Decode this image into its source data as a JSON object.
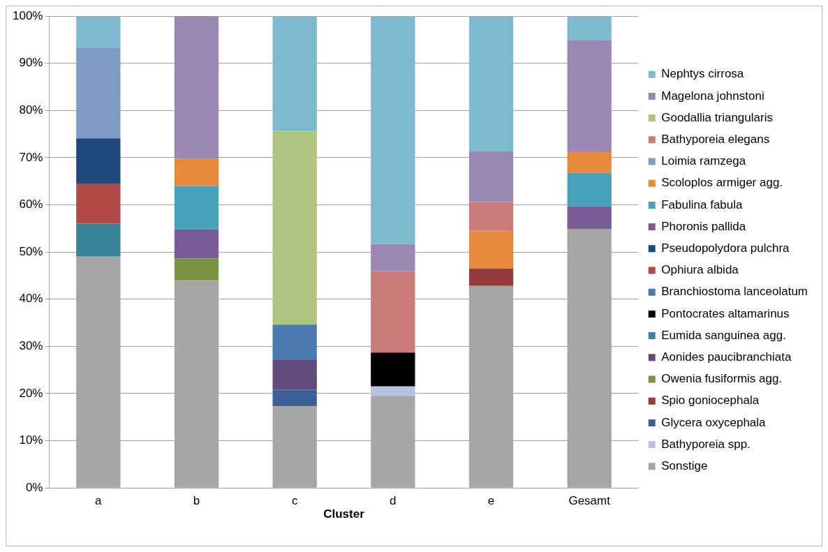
{
  "chart_data": {
    "type": "bar",
    "stacked": true,
    "xlabel": "Cluster",
    "categories": [
      "a",
      "b",
      "c",
      "d",
      "e",
      "Gesamt"
    ],
    "ylim": [
      0,
      100
    ],
    "yticks": [
      {
        "value": 0,
        "label": "0%"
      },
      {
        "value": 10,
        "label": "10%"
      },
      {
        "value": 20,
        "label": "20%"
      },
      {
        "value": 30,
        "label": "30%"
      },
      {
        "value": 40,
        "label": "40%"
      },
      {
        "value": 50,
        "label": "50%"
      },
      {
        "value": 60,
        "label": "60%"
      },
      {
        "value": 70,
        "label": "70%"
      },
      {
        "value": 80,
        "label": "80%"
      },
      {
        "value": 90,
        "label": "90%"
      },
      {
        "value": 100,
        "label": "100%"
      }
    ],
    "grid": "y",
    "legend": "right",
    "series": [
      {
        "name": "Sonstige",
        "color": "#a6a6a6",
        "values": [
          49.0,
          44.1,
          17.3,
          19.5,
          42.8,
          54.9
        ]
      },
      {
        "name": "Bathyporeia spp.",
        "color": "#b5c3e0",
        "values": [
          null,
          null,
          null,
          2.0,
          null,
          null
        ]
      },
      {
        "name": "Glycera oxycephala",
        "color": "#3c6196",
        "values": [
          null,
          null,
          3.5,
          null,
          null,
          null
        ]
      },
      {
        "name": "Spio goniocephala",
        "color": "#953a3a",
        "values": [
          null,
          null,
          null,
          null,
          3.7,
          null
        ]
      },
      {
        "name": "Owenia fusiformis agg.",
        "color": "#7a9444",
        "values": [
          null,
          4.5,
          null,
          null,
          null,
          null
        ]
      },
      {
        "name": "Aonides paucibranchiata",
        "color": "#614b7c",
        "values": [
          null,
          null,
          6.3,
          null,
          null,
          null
        ]
      },
      {
        "name": "Eumida sanguinea agg.",
        "color": "#398496",
        "values": [
          7.0,
          null,
          null,
          null,
          null,
          null
        ]
      },
      {
        "name": "Pontocrates altamarinus",
        "color": "#000000",
        "values": [
          null,
          null,
          null,
          7.2,
          null,
          null
        ]
      },
      {
        "name": "Branchiostoma lanceolatum",
        "color": "#4a78b0",
        "values": [
          null,
          null,
          7.5,
          null,
          null,
          null
        ]
      },
      {
        "name": "Ophiura albida",
        "color": "#b24b48",
        "values": [
          8.4,
          null,
          null,
          null,
          null,
          null
        ]
      },
      {
        "name": "Pseudopolydora pulchra",
        "color": "#1f497d",
        "values": [
          9.7,
          null,
          null,
          null,
          null,
          null
        ]
      },
      {
        "name": "Phoronis pallida",
        "color": "#785c96",
        "values": [
          null,
          6.2,
          null,
          null,
          null,
          4.8
        ]
      },
      {
        "name": "Fabulina fabula",
        "color": "#47a1ba",
        "values": [
          null,
          9.2,
          null,
          null,
          null,
          7.1
        ]
      },
      {
        "name": "Scoloplos armiger agg.",
        "color": "#e88a3e",
        "values": [
          null,
          5.8,
          null,
          null,
          8.0,
          4.5
        ]
      },
      {
        "name": "Loimia ramzega",
        "color": "#7f9ac4",
        "values": [
          19.1,
          null,
          null,
          null,
          null,
          null
        ]
      },
      {
        "name": "Bathyporeia elegans",
        "color": "#c97b7a",
        "values": [
          null,
          null,
          null,
          17.2,
          6.1,
          null
        ]
      },
      {
        "name": "Goodallia triangularis",
        "color": "#adc581",
        "values": [
          null,
          null,
          41.1,
          null,
          null,
          null
        ]
      },
      {
        "name": "Magelona johnstoni",
        "color": "#9b88b2",
        "values": [
          null,
          30.2,
          null,
          5.8,
          10.7,
          23.6
        ]
      },
      {
        "name": "Nephtys cirrosa",
        "color": "#7db9cf",
        "values": [
          6.8,
          null,
          24.3,
          48.3,
          28.7,
          5.1
        ]
      }
    ]
  }
}
